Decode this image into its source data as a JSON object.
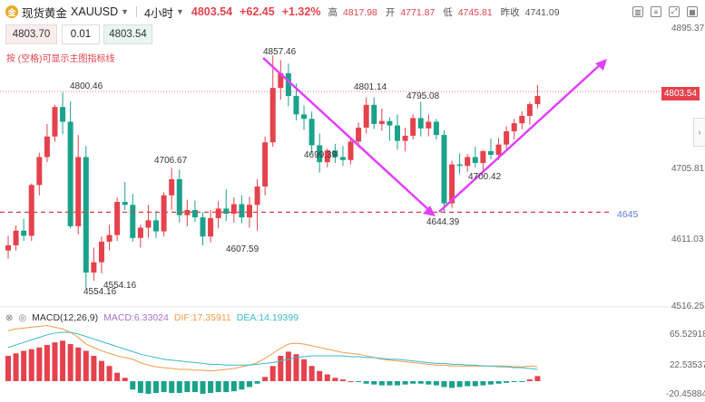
{
  "header": {
    "logo_text": "金",
    "symbol_name": "现货黄金",
    "symbol_code": "XAUUSD",
    "timeframe": "4小时",
    "last_price": "4803.54",
    "change": "+62.45",
    "change_pct": "+1.32%",
    "high_label": "高",
    "high_value": "4817.98",
    "open_label": "开",
    "open_value": "4771.87",
    "low_label": "低",
    "low_value": "4745.81",
    "prev_close_label": "昨收",
    "prev_close_value": "4741.09"
  },
  "order_panel": {
    "sell_price": "4803.70",
    "lot_size": "0.01",
    "buy_price": "4803.54",
    "hint": "按 (空格)可显示主图指标线"
  },
  "price_axis": {
    "labels": [
      "4895.37",
      "4705.81",
      "4611.03",
      "4516.25"
    ],
    "current_tag": "4803.54",
    "level_line_label": "4645"
  },
  "annotations": {
    "high_1": "4800.46",
    "low_1": "4554.16",
    "low_1b": "4554.16",
    "high_2": "4706.67",
    "low_2": "4607.59",
    "peak": "4857.46",
    "low_3": "4699.39",
    "high_3": "4801.14",
    "high_4": "4795.08",
    "bottom": "4644.39",
    "low_4": "4700.42"
  },
  "macd": {
    "title": "MACD(12,26,9)",
    "macd_value": "MACD:6.33024",
    "dif_value": "DIF:17.35911",
    "dea_value": "DEA:14.19399",
    "axis_labels": [
      "65.52918",
      "22.53537",
      "-20.45884"
    ]
  },
  "colors": {
    "up": "#e5424d",
    "down": "#1aa28a",
    "arrow": "#e040fb",
    "dif": "#f39c4a",
    "dea": "#39b9c9"
  },
  "chart_data": {
    "type": "candlestick",
    "ylim": [
      4516.25,
      4895.37
    ],
    "levels": [
      4645
    ],
    "candles": [
      {
        "o": 4593,
        "h": 4613,
        "l": 4582,
        "c": 4600
      },
      {
        "o": 4600,
        "h": 4627,
        "l": 4593,
        "c": 4620
      },
      {
        "o": 4620,
        "h": 4636,
        "l": 4606,
        "c": 4613
      },
      {
        "o": 4613,
        "h": 4684,
        "l": 4606,
        "c": 4682
      },
      {
        "o": 4682,
        "h": 4726,
        "l": 4668,
        "c": 4720
      },
      {
        "o": 4720,
        "h": 4765,
        "l": 4713,
        "c": 4748
      },
      {
        "o": 4748,
        "h": 4791,
        "l": 4741,
        "c": 4788
      },
      {
        "o": 4788,
        "h": 4808,
        "l": 4751,
        "c": 4768
      },
      {
        "o": 4768,
        "h": 4796,
        "l": 4623,
        "c": 4626
      },
      {
        "o": 4626,
        "h": 4750,
        "l": 4615,
        "c": 4720
      },
      {
        "o": 4720,
        "h": 4735,
        "l": 4542,
        "c": 4563
      },
      {
        "o": 4563,
        "h": 4597,
        "l": 4552,
        "c": 4577
      },
      {
        "o": 4577,
        "h": 4612,
        "l": 4562,
        "c": 4605
      },
      {
        "o": 4605,
        "h": 4628,
        "l": 4593,
        "c": 4614
      },
      {
        "o": 4614,
        "h": 4665,
        "l": 4606,
        "c": 4659
      },
      {
        "o": 4659,
        "h": 4686,
        "l": 4648,
        "c": 4655
      },
      {
        "o": 4655,
        "h": 4670,
        "l": 4605,
        "c": 4610
      },
      {
        "o": 4610,
        "h": 4628,
        "l": 4597,
        "c": 4624
      },
      {
        "o": 4624,
        "h": 4655,
        "l": 4610,
        "c": 4634
      },
      {
        "o": 4634,
        "h": 4647,
        "l": 4610,
        "c": 4619
      },
      {
        "o": 4619,
        "h": 4672,
        "l": 4612,
        "c": 4668
      },
      {
        "o": 4668,
        "h": 4705,
        "l": 4648,
        "c": 4690
      },
      {
        "o": 4690,
        "h": 4703,
        "l": 4631,
        "c": 4641
      },
      {
        "o": 4641,
        "h": 4662,
        "l": 4626,
        "c": 4648
      },
      {
        "o": 4648,
        "h": 4661,
        "l": 4632,
        "c": 4638
      },
      {
        "o": 4638,
        "h": 4645,
        "l": 4600,
        "c": 4612
      },
      {
        "o": 4612,
        "h": 4648,
        "l": 4604,
        "c": 4637
      },
      {
        "o": 4637,
        "h": 4660,
        "l": 4623,
        "c": 4650
      },
      {
        "o": 4650,
        "h": 4676,
        "l": 4633,
        "c": 4643
      },
      {
        "o": 4643,
        "h": 4665,
        "l": 4631,
        "c": 4656
      },
      {
        "o": 4656,
        "h": 4668,
        "l": 4630,
        "c": 4638
      },
      {
        "o": 4638,
        "h": 4666,
        "l": 4624,
        "c": 4655
      },
      {
        "o": 4655,
        "h": 4690,
        "l": 4620,
        "c": 4680
      },
      {
        "o": 4680,
        "h": 4748,
        "l": 4668,
        "c": 4740
      },
      {
        "o": 4740,
        "h": 4858,
        "l": 4734,
        "c": 4814
      },
      {
        "o": 4814,
        "h": 4852,
        "l": 4798,
        "c": 4834
      },
      {
        "o": 4834,
        "h": 4847,
        "l": 4789,
        "c": 4803
      },
      {
        "o": 4803,
        "h": 4820,
        "l": 4770,
        "c": 4778
      },
      {
        "o": 4778,
        "h": 4790,
        "l": 4757,
        "c": 4772
      },
      {
        "o": 4772,
        "h": 4782,
        "l": 4725,
        "c": 4736
      },
      {
        "o": 4736,
        "h": 4752,
        "l": 4699,
        "c": 4713
      },
      {
        "o": 4713,
        "h": 4732,
        "l": 4706,
        "c": 4729
      },
      {
        "o": 4729,
        "h": 4738,
        "l": 4712,
        "c": 4720
      },
      {
        "o": 4720,
        "h": 4735,
        "l": 4708,
        "c": 4716
      },
      {
        "o": 4716,
        "h": 4747,
        "l": 4710,
        "c": 4741
      },
      {
        "o": 4741,
        "h": 4767,
        "l": 4733,
        "c": 4760
      },
      {
        "o": 4760,
        "h": 4801,
        "l": 4752,
        "c": 4791
      },
      {
        "o": 4791,
        "h": 4801,
        "l": 4758,
        "c": 4765
      },
      {
        "o": 4765,
        "h": 4786,
        "l": 4756,
        "c": 4769
      },
      {
        "o": 4769,
        "h": 4774,
        "l": 4742,
        "c": 4763
      },
      {
        "o": 4763,
        "h": 4778,
        "l": 4730,
        "c": 4742
      },
      {
        "o": 4742,
        "h": 4760,
        "l": 4728,
        "c": 4749
      },
      {
        "o": 4749,
        "h": 4778,
        "l": 4744,
        "c": 4773
      },
      {
        "o": 4773,
        "h": 4795,
        "l": 4748,
        "c": 4759
      },
      {
        "o": 4759,
        "h": 4778,
        "l": 4748,
        "c": 4768
      },
      {
        "o": 4768,
        "h": 4772,
        "l": 4744,
        "c": 4750
      },
      {
        "o": 4750,
        "h": 4756,
        "l": 4644,
        "c": 4657
      },
      {
        "o": 4657,
        "h": 4715,
        "l": 4651,
        "c": 4710
      },
      {
        "o": 4710,
        "h": 4725,
        "l": 4697,
        "c": 4708
      },
      {
        "o": 4708,
        "h": 4724,
        "l": 4700,
        "c": 4720
      },
      {
        "o": 4720,
        "h": 4734,
        "l": 4706,
        "c": 4712
      },
      {
        "o": 4712,
        "h": 4730,
        "l": 4700,
        "c": 4728
      },
      {
        "o": 4728,
        "h": 4745,
        "l": 4717,
        "c": 4723
      },
      {
        "o": 4723,
        "h": 4746,
        "l": 4716,
        "c": 4737
      },
      {
        "o": 4737,
        "h": 4762,
        "l": 4730,
        "c": 4755
      },
      {
        "o": 4755,
        "h": 4772,
        "l": 4744,
        "c": 4766
      },
      {
        "o": 4766,
        "h": 4782,
        "l": 4758,
        "c": 4776
      },
      {
        "o": 4776,
        "h": 4795,
        "l": 4764,
        "c": 4792
      },
      {
        "o": 4792,
        "h": 4818,
        "l": 4786,
        "c": 4803
      }
    ],
    "macd_hist": [
      30,
      33,
      36,
      38,
      40,
      43,
      46,
      48,
      44,
      40,
      36,
      30,
      24,
      18,
      10,
      4,
      -10,
      -14,
      -15,
      -14,
      -13,
      -14,
      -14,
      -13,
      -13,
      -15,
      -14,
      -13,
      -13,
      -12,
      -10,
      -7,
      -3,
      5,
      18,
      30,
      35,
      32,
      26,
      18,
      12,
      8,
      4,
      2,
      0,
      -1,
      -3,
      -4,
      -5,
      -5,
      -5,
      -4,
      -3,
      -3,
      -4,
      -5,
      -7,
      -8,
      -7,
      -6,
      -6,
      -5,
      -4,
      -3,
      -2,
      -1,
      -1,
      2,
      6
    ],
    "dif": [
      60,
      62,
      63,
      64,
      65,
      66,
      64,
      62,
      58,
      52,
      44,
      40,
      36,
      33,
      30,
      28,
      26,
      22,
      19,
      17,
      16,
      15,
      14,
      14,
      13,
      13,
      12,
      13,
      14,
      15,
      17,
      19,
      22,
      27,
      33,
      39,
      44,
      45,
      44,
      42,
      40,
      38,
      36,
      34,
      33,
      32,
      30,
      28,
      26,
      25,
      24,
      23,
      22,
      21,
      20,
      19,
      19,
      18,
      18,
      18,
      18,
      18,
      18,
      18,
      18,
      17,
      17,
      18,
      17
    ],
    "dea": [
      40,
      43,
      46,
      49,
      52,
      55,
      57,
      58,
      58,
      56,
      53,
      50,
      47,
      44,
      41,
      38,
      35,
      32,
      30,
      28,
      26,
      25,
      24,
      23,
      22,
      21,
      20,
      20,
      19,
      19,
      19,
      19,
      20,
      21,
      22,
      24,
      26,
      28,
      29,
      30,
      30,
      30,
      30,
      30,
      29,
      29,
      28,
      28,
      27,
      26,
      26,
      25,
      24,
      23,
      22,
      21,
      21,
      20,
      20,
      19,
      19,
      18,
      18,
      17,
      17,
      16,
      16,
      15,
      14
    ]
  }
}
